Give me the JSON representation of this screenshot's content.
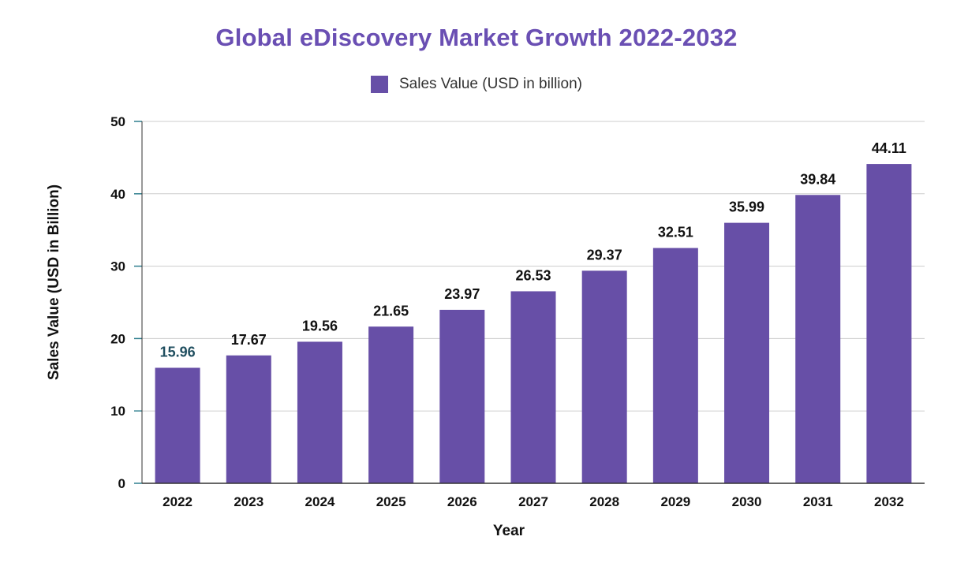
{
  "chart_data": {
    "type": "bar",
    "title": "Global eDiscovery Market Growth 2022-2032",
    "legend": "Sales Value (USD in billion)",
    "legend_position": "top-center",
    "xlabel": "Year",
    "ylabel": "Sales Value (USD in Billion)",
    "categories": [
      "2022",
      "2023",
      "2024",
      "2025",
      "2026",
      "2027",
      "2028",
      "2029",
      "2030",
      "2031",
      "2032"
    ],
    "series": [
      {
        "name": "Sales Value (USD in billion)",
        "values": [
          15.96,
          17.67,
          19.56,
          21.65,
          23.97,
          26.53,
          29.37,
          32.51,
          35.99,
          39.84,
          44.11
        ],
        "labels": [
          "15.96",
          "17.67",
          "19.56",
          "21.65",
          "23.97",
          "26.53",
          "29.37",
          "32.51",
          "35.99",
          "39.84",
          "44.11"
        ]
      }
    ],
    "ylim": [
      0,
      50
    ],
    "yticks": [
      0,
      10,
      20,
      30,
      40,
      50
    ],
    "ytick_labels": [
      "0",
      "10",
      "20",
      "30",
      "40",
      "50"
    ],
    "grid": true,
    "colors": {
      "bar": "#674fa7",
      "title": "#6a4fb3",
      "first_label": "#1f4e5f",
      "label": "#111111",
      "grid": "#cccccc",
      "tick_mark": "#2f7f8f"
    }
  }
}
